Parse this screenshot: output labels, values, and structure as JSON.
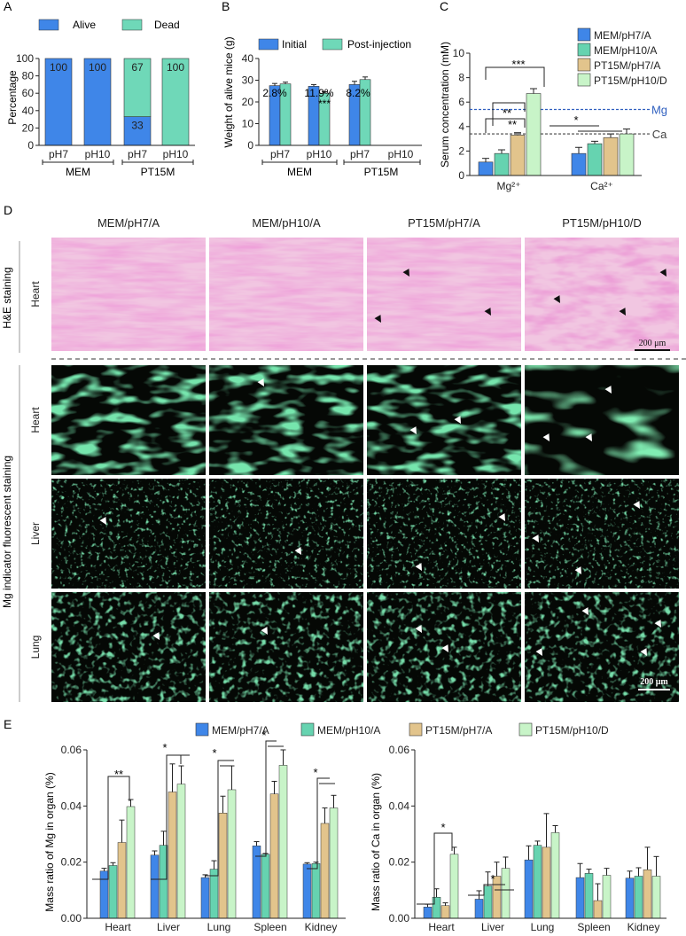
{
  "colors": {
    "mem_ph7": "#3f86e8",
    "mem_ph10": "#66d3b0",
    "pt15_ph7": "#e2c48c",
    "pt15_ph10": "#c8f4c8",
    "alive": "#3f86e8",
    "dead": "#6fd8b8",
    "initial": "#3f86e8",
    "post": "#6fd8b8",
    "he_tissue": "#d86bb0",
    "fluor_tissue": "#2ec46a",
    "mg_line": "#2f5fbf",
    "ca_line": "#444444"
  },
  "panel_letters": {
    "a": "A",
    "b": "B",
    "c": "C",
    "d": "D",
    "e": "E"
  },
  "chart_data": [
    {
      "id": "A",
      "type": "bar",
      "ylabel": "Percentage",
      "ylim": [
        0,
        100
      ],
      "yticks": [
        "0",
        "20",
        "40",
        "60",
        "80",
        "100"
      ],
      "legend": [
        "Alive",
        "Dead"
      ],
      "categories": [
        "pH7",
        "pH10",
        "pH7",
        "pH10"
      ],
      "groups": [
        "MEM",
        "PT15M"
      ],
      "series": [
        {
          "name": "Alive",
          "values": [
            100,
            100,
            33,
            0
          ],
          "labels": [
            "100",
            "100",
            "33",
            ""
          ]
        },
        {
          "name": "Dead",
          "values": [
            0,
            0,
            67,
            100
          ],
          "labels": [
            "",
            "",
            "67",
            "100"
          ]
        }
      ]
    },
    {
      "id": "B",
      "type": "bar",
      "ylabel": "Weight of alive mice (g)",
      "ylim": [
        0,
        40
      ],
      "yticks": [
        "0",
        "10",
        "20",
        "30",
        "40"
      ],
      "legend": [
        "Initial",
        "Post-injection"
      ],
      "categories": [
        "pH7",
        "pH10",
        "pH7",
        "pH10"
      ],
      "groups": [
        "MEM",
        "PT15M"
      ],
      "series": [
        {
          "name": "Initial",
          "values": [
            27.5,
            27.2,
            28.0,
            null
          ],
          "errors": [
            1.0,
            0.8,
            1.5,
            null
          ]
        },
        {
          "name": "Post-injection",
          "values": [
            28.3,
            24.0,
            30.3,
            null
          ],
          "errors": [
            0.8,
            0.7,
            1.2,
            null
          ]
        }
      ],
      "annotations": [
        "2.8%",
        "11.9%",
        "***",
        "8.2%"
      ]
    },
    {
      "id": "C",
      "type": "bar",
      "ylabel": "Serum concentration (mM)",
      "ylim": [
        0,
        10
      ],
      "yticks": [
        "0",
        "2",
        "4",
        "6",
        "8",
        "10"
      ],
      "categories": [
        "Mg²⁺",
        "Ca²⁺"
      ],
      "series": [
        {
          "name": "MEM/pH7/A",
          "values": [
            1.1,
            1.8
          ],
          "errors": [
            0.3,
            0.5
          ]
        },
        {
          "name": "MEM/pH10/A",
          "values": [
            1.8,
            2.6
          ],
          "errors": [
            0.3,
            0.2
          ]
        },
        {
          "name": "PT15M/pH7/A",
          "values": [
            3.3,
            3.1
          ],
          "errors": [
            0.2,
            0.3
          ]
        },
        {
          "name": "PT15M/pH10/D",
          "values": [
            6.7,
            3.4
          ],
          "errors": [
            0.4,
            0.4
          ]
        }
      ],
      "reference_lines": [
        {
          "label": "Mg",
          "value": 5.4
        },
        {
          "label": "Ca",
          "value": 3.4
        }
      ],
      "significance": [
        "***",
        "**",
        "**",
        "*"
      ]
    },
    {
      "id": "E-Mg",
      "type": "bar",
      "ylabel": "Mass ratio of Mg in organ (%)",
      "ylim": [
        0,
        0.06
      ],
      "yticks": [
        "0.00",
        "0.02",
        "0.04",
        "0.06"
      ],
      "categories": [
        "Heart",
        "Liver",
        "Lung",
        "Spleen",
        "Kidney"
      ],
      "series": [
        {
          "name": "MEM/pH7/A",
          "values": [
            0.0168,
            0.0225,
            0.0145,
            0.0258,
            0.0193
          ],
          "errors": [
            0.001,
            0.0015,
            0.001,
            0.0015,
            0.0005
          ]
        },
        {
          "name": "MEM/pH10/A",
          "values": [
            0.0188,
            0.026,
            0.0175,
            0.0228,
            0.0195
          ],
          "errors": [
            0.001,
            0.005,
            0.003,
            0.0003,
            0.0005
          ]
        },
        {
          "name": "PT15M/pH7/A",
          "values": [
            0.027,
            0.045,
            0.0375,
            0.0443,
            0.0338
          ],
          "errors": [
            0.008,
            0.01,
            0.006,
            0.0045,
            0.0055
          ]
        },
        {
          "name": "PT15M/pH10/D",
          "values": [
            0.0398,
            0.0478,
            0.0458,
            0.0545,
            0.0393
          ],
          "errors": [
            0.0025,
            0.0065,
            0.0085,
            0.0055,
            0.0045
          ]
        }
      ],
      "significance": [
        "**",
        "*",
        "*",
        "*",
        "*"
      ]
    },
    {
      "id": "E-Ca",
      "type": "bar",
      "ylabel": "Mass ratio of Ca in organ (%)",
      "ylim": [
        0,
        0.06
      ],
      "yticks": [
        "0.00",
        "0.02",
        "0.04",
        "0.06"
      ],
      "categories": [
        "Heart",
        "Liver",
        "Lung",
        "Spleen",
        "Kidney"
      ],
      "series": [
        {
          "name": "MEM/pH7/A",
          "values": [
            0.004,
            0.0068,
            0.0208,
            0.0145,
            0.0143
          ],
          "errors": [
            0.001,
            0.003,
            0.005,
            0.005,
            0.0025
          ]
        },
        {
          "name": "MEM/pH10/A",
          "values": [
            0.0075,
            0.0115,
            0.026,
            0.016,
            0.015
          ],
          "errors": [
            0.003,
            0.005,
            0.0015,
            0.0015,
            0.003
          ]
        },
        {
          "name": "PT15M/pH7/A",
          "values": [
            0.0045,
            0.015,
            0.0253,
            0.0063,
            0.0173
          ],
          "errors": [
            0.001,
            0.005,
            0.012,
            0.006,
            0.008
          ]
        },
        {
          "name": "PT15M/pH10/D",
          "values": [
            0.0228,
            0.0178,
            0.0305,
            0.0153,
            0.015
          ],
          "errors": [
            0.0025,
            0.004,
            0.0025,
            0.0025,
            0.007
          ]
        }
      ],
      "significance": [
        "*",
        "*"
      ]
    }
  ],
  "micrographs": {
    "columns": [
      "MEM/pH7/A",
      "MEM/pH10/A",
      "PT15M/pH7/A",
      "PT15M/pH10/D"
    ],
    "row_groups": [
      "H&E staining",
      "Mg indicator fluorescent staining"
    ],
    "rows": [
      "Heart",
      "Heart",
      "Liver",
      "Lung"
    ],
    "scale_bar": "200 μm"
  }
}
